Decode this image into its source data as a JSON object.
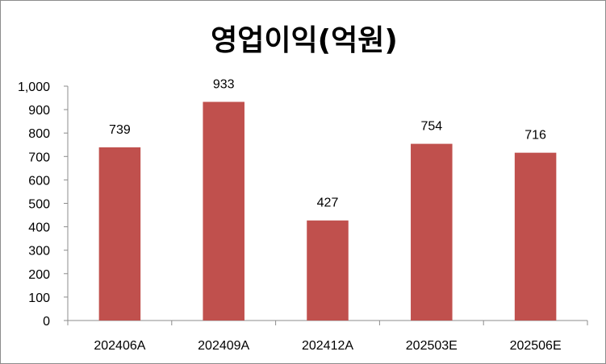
{
  "chart_data": {
    "type": "bar",
    "title": "영업이익(억원)",
    "xlabel": "",
    "ylabel": "",
    "categories": [
      "202406A",
      "202409A",
      "202412A",
      "202503E",
      "202506E"
    ],
    "values": [
      739,
      933,
      427,
      754,
      716
    ],
    "data_labels": [
      "739",
      "933",
      "427",
      "754",
      "716"
    ],
    "ylim": [
      0,
      1000
    ],
    "y_ticks": [
      0,
      100,
      200,
      300,
      400,
      500,
      600,
      700,
      800,
      900,
      1000
    ],
    "y_tick_labels": [
      "0",
      "100",
      "200",
      "300",
      "400",
      "500",
      "600",
      "700",
      "800",
      "900",
      "1,000"
    ],
    "bar_color": "#C0504D",
    "grid": false,
    "legend": "none"
  }
}
